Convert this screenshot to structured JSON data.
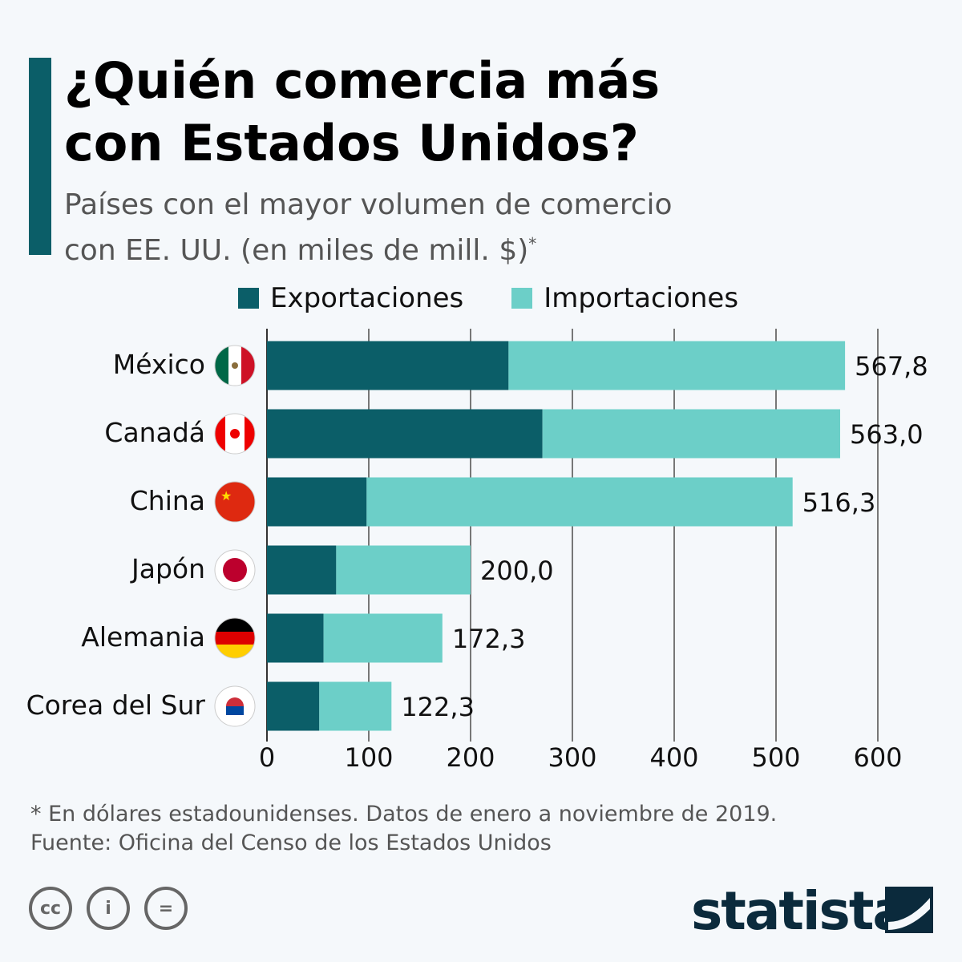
{
  "title_line1": "¿Quién comercia más",
  "title_line2": "con Estados Unidos?",
  "subtitle_line1": "Países con el mayor volumen de comercio",
  "subtitle_line2": "con EE. UU. (en miles de mill. $)",
  "subtitle_mark": "*",
  "colors": {
    "exports": "#0b5e68",
    "imports": "#6ccfc8",
    "accent": "#0b5e68"
  },
  "chart_data": {
    "type": "bar",
    "orientation": "horizontal",
    "stacked": true,
    "categories": [
      "México",
      "Canadá",
      "China",
      "Japón",
      "Alemania",
      "Corea del Sur"
    ],
    "flags": [
      "mexico-flag",
      "canada-flag",
      "china-flag",
      "japan-flag",
      "germany-flag",
      "south-korea-flag"
    ],
    "series": [
      {
        "name": "Exportaciones",
        "values": [
          237.3,
          270.6,
          97.9,
          68.0,
          55.6,
          51.4
        ]
      },
      {
        "name": "Importaciones",
        "values": [
          330.5,
          292.4,
          418.4,
          132.0,
          116.7,
          70.9
        ]
      }
    ],
    "totals": [
      567.8,
      563.0,
      516.3,
      200.0,
      172.3,
      122.3
    ],
    "total_labels": [
      "567,8",
      "563,0",
      "516,3",
      "200,0",
      "172,3",
      "122,3"
    ],
    "xlim": [
      0,
      600
    ],
    "xticks": [
      0,
      100,
      200,
      300,
      400,
      500,
      600
    ],
    "grid": true,
    "legend": "top"
  },
  "footnote": "* En dólares estadounidenses. Datos de enero a noviembre de 2019.",
  "source": "Fuente: Oficina del Censo de los Estados Unidos",
  "brand": "statista"
}
